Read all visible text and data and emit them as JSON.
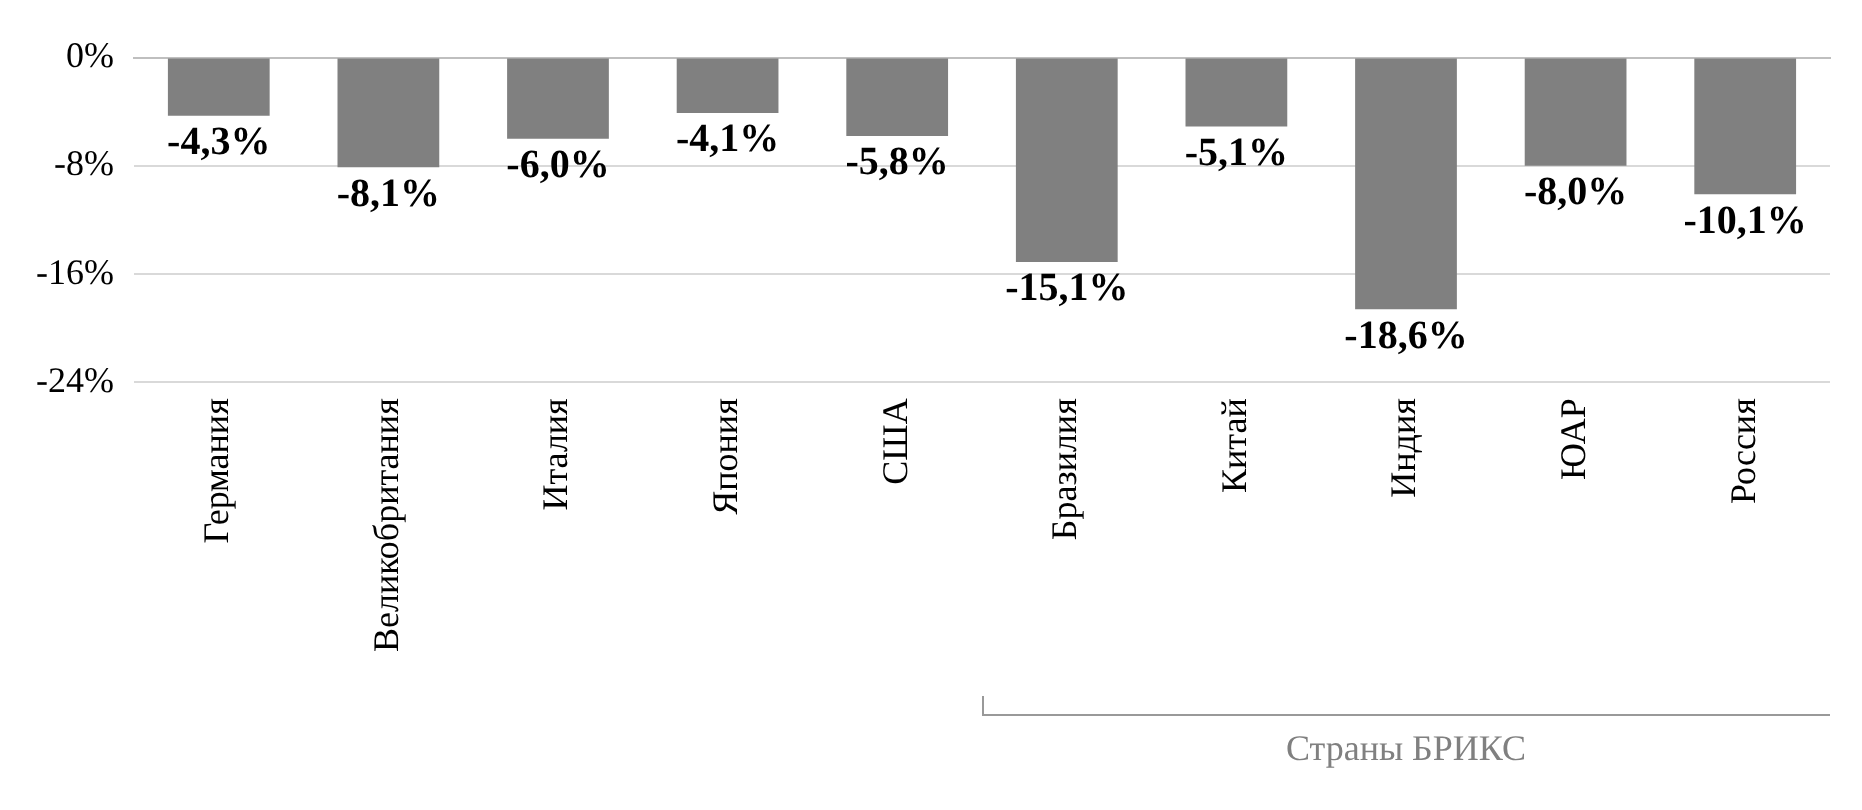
{
  "chart_data": {
    "type": "bar",
    "categories": [
      "Германия",
      "Великобритания",
      "Италия",
      "Япония",
      "США",
      "Бразилия",
      "Китай",
      "Индия",
      "ЮАР",
      "Россия"
    ],
    "values": [
      -4.3,
      -8.1,
      -6.0,
      -4.1,
      -5.8,
      -15.1,
      -5.1,
      -18.6,
      -8.0,
      -10.1
    ],
    "value_labels": [
      "-4,3%",
      "-8,1%",
      "-6,0%",
      "-4,1%",
      "-5,8%",
      "-15,1%",
      "-5,1%",
      "-18,6%",
      "-8,0%",
      "-10,1%"
    ],
    "color": "#808080",
    "ylim": [
      -24,
      0
    ],
    "yticks": [
      {
        "value": -24,
        "label": "-24%"
      },
      {
        "value": -16,
        "label": "-16%"
      },
      {
        "value": -8,
        "label": "-8%"
      },
      {
        "value": 0,
        "label": "0%"
      }
    ],
    "grid": "y",
    "legend": false,
    "annotations": [
      "Страны БРИКС"
    ]
  }
}
